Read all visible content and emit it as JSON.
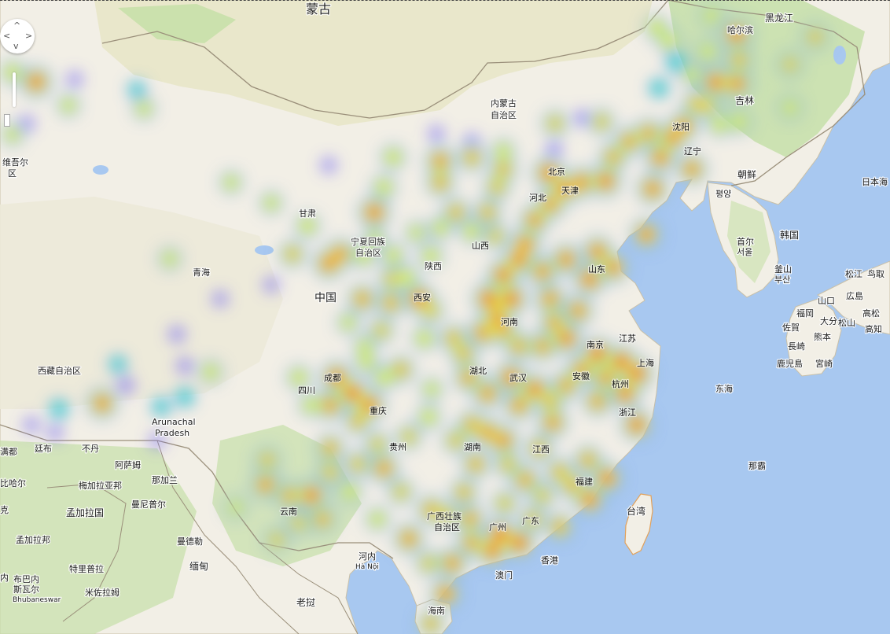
{
  "map": {
    "title": "",
    "colors": {
      "water": "#a8c8f0",
      "land": "#f2efe6",
      "steppe": "#e6e6c8",
      "greenery": "#c6dfa8",
      "border": "#9a8f7a",
      "heat_low": "#7a6df2",
      "heat_mid": "#3ee0c8",
      "heat_yellow": "#f4f23a",
      "heat_high": "#f03a2a"
    },
    "icons": [
      "pan-control-icon",
      "zoom-slider-icon"
    ]
  },
  "labels": {
    "mongolia": "蒙古",
    "heilongjiang": "黑龙江",
    "harbin": "哈尔滨",
    "jilin": "吉林",
    "inner_mongolia_1": "内蒙古",
    "inner_mongolia_2": "自治区",
    "shenyang": "沈阳",
    "liaoning": "辽宁",
    "north_korea": "朝鲜",
    "pyongyang": "평양",
    "south_korea": "韩国",
    "seoul_zh": "首尔",
    "seoul_ko": "서울",
    "busan_zh": "釜山",
    "busan_ko": "부산",
    "japan_sea": "日本海",
    "matsue": "松江",
    "tottori": "鸟取",
    "yamaguchi": "山口",
    "hiroshima": "広島",
    "fukuoka": "福岡",
    "oita": "大分",
    "matsuyama": "松山",
    "takamatsu": "高松",
    "saga": "佐賀",
    "kumamoto": "熊本",
    "kochi": "高知",
    "nagasaki": "長崎",
    "kagoshima": "鹿児島",
    "miyazaki": "宮崎",
    "east_china_sea": "东海",
    "naha": "那霸",
    "taiwan": "台湾",
    "beijing": "北京",
    "tianjin": "天津",
    "hebei": "河北",
    "shanxi": "山西",
    "shandong": "山东",
    "henan": "河南",
    "jiangsu": "江苏",
    "nanjing": "南京",
    "shanghai": "上海",
    "anhui": "安徽",
    "hangzhou": "杭州",
    "zhejiang": "浙江",
    "hubei": "湖北",
    "wuhan": "武汉",
    "hunan": "湖南",
    "jiangxi": "江西",
    "fujian": "福建",
    "guangdong": "广东",
    "guangzhou": "广州",
    "hongkong": "香港",
    "macau": "澳门",
    "guangxi_1": "广西壮族",
    "guangxi_2": "自治区",
    "hainan": "海南",
    "guizhou": "贵州",
    "chongqing": "重庆",
    "sichuan": "四川",
    "chengdu": "成都",
    "yunnan": "云南",
    "shaanxi": "陕西",
    "xian": "西安",
    "ningxia_1": "宁夏回族",
    "ningxia_2": "自治区",
    "gansu": "甘肃",
    "qinghai": "青海",
    "china": "中国",
    "tibet": "西藏自治区",
    "xinjiang_1": "维吾尔",
    "xinjiang_2": "区",
    "arunachal_1": "Arunachal",
    "arunachal_2": "Pradesh",
    "thimphu": "廷布",
    "bhutan": "不丹",
    "assam": "阿萨姆",
    "nagaland": "那加兰",
    "meghalaya": "梅加拉亚邦",
    "manipur": "曼尼普尔",
    "bangladesh": "孟加拉国",
    "west_bengal": "孟加拉邦",
    "tripura": "特里普拉",
    "mizoram": "米佐拉姆",
    "bihar": "比哈尔",
    "kathmandu": "满都",
    "mandalay": "曼德勒",
    "myanmar": "缅甸",
    "hanoi_zh": "河内",
    "hanoi_vi": "Hà Nội",
    "laos": "老挝",
    "bhubaneswar_zh_1": "布巴内",
    "bhubaneswar_zh_2": "斯瓦尔",
    "bhubaneswar_en": "Bhubaneswar",
    "krk": "克",
    "ne": "内"
  },
  "heat_points": [
    [
      418,
      210,
      0.1
    ],
    [
      46,
      104,
      0.95
    ],
    [
      16,
      92,
      0.55
    ],
    [
      87,
      134,
      0.45
    ],
    [
      16,
      171,
      0.45
    ],
    [
      95,
      101,
      0.1
    ],
    [
      174,
      114,
      0.25
    ],
    [
      183,
      138,
      0.45
    ],
    [
      34,
      157,
      0.1
    ],
    [
      294,
      232,
      0.45
    ],
    [
      345,
      258,
      0.45
    ],
    [
      391,
      287,
      0.55
    ],
    [
      372,
      323,
      0.65
    ],
    [
      418,
      335,
      0.9
    ],
    [
      433,
      323,
      0.85
    ],
    [
      216,
      329,
      0.45
    ],
    [
      345,
      362,
      0.1
    ],
    [
      461,
      380,
      0.8
    ],
    [
      497,
      385,
      0.75
    ],
    [
      517,
      353,
      0.55
    ],
    [
      533,
      380,
      0.95
    ],
    [
      548,
      325,
      0.55
    ],
    [
      548,
      395,
      0.6
    ],
    [
      540,
      430,
      0.55
    ],
    [
      577,
      430,
      0.7
    ],
    [
      485,
      420,
      0.6
    ],
    [
      464,
      440,
      0.45
    ],
    [
      443,
      410,
      0.45
    ],
    [
      466,
      460,
      0.5
    ],
    [
      488,
      480,
      0.55
    ],
    [
      510,
      470,
      0.7
    ],
    [
      428,
      480,
      0.95
    ],
    [
      448,
      500,
      1.0
    ],
    [
      470,
      515,
      0.95
    ],
    [
      420,
      515,
      0.85
    ],
    [
      455,
      535,
      0.7
    ],
    [
      380,
      480,
      0.55
    ],
    [
      395,
      515,
      0.5
    ],
    [
      549,
      495,
      0.45
    ],
    [
      545,
      530,
      0.55
    ],
    [
      520,
      555,
      0.6
    ],
    [
      480,
      565,
      0.6
    ],
    [
      488,
      595,
      0.85
    ],
    [
      455,
      590,
      0.65
    ],
    [
      420,
      570,
      0.75
    ],
    [
      420,
      600,
      0.65
    ],
    [
      340,
      585,
      0.65
    ],
    [
      338,
      616,
      0.85
    ],
    [
      368,
      630,
      0.75
    ],
    [
      396,
      630,
      0.95
    ],
    [
      410,
      660,
      0.75
    ],
    [
      380,
      665,
      0.6
    ],
    [
      300,
      645,
      0.45
    ],
    [
      352,
      686,
      0.6
    ],
    [
      445,
      625,
      0.55
    ],
    [
      480,
      660,
      0.5
    ],
    [
      510,
      625,
      0.6
    ],
    [
      548,
      648,
      0.75
    ],
    [
      520,
      685,
      0.85
    ],
    [
      545,
      716,
      0.6
    ],
    [
      575,
      716,
      0.85
    ],
    [
      567,
      755,
      0.9
    ],
    [
      548,
      793,
      0.7
    ],
    [
      568,
      655,
      0.65
    ],
    [
      598,
      660,
      0.8
    ],
    [
      636,
      680,
      1.0
    ],
    [
      660,
      690,
      1.0
    ],
    [
      626,
      700,
      0.95
    ],
    [
      600,
      690,
      0.8
    ],
    [
      678,
      660,
      0.65
    ],
    [
      712,
      670,
      0.75
    ],
    [
      590,
      626,
      0.7
    ],
    [
      642,
      640,
      0.6
    ],
    [
      668,
      610,
      0.8
    ],
    [
      690,
      630,
      0.6
    ],
    [
      712,
      600,
      0.7
    ],
    [
      748,
      585,
      0.75
    ],
    [
      772,
      608,
      0.95
    ],
    [
      750,
      635,
      0.95
    ],
    [
      728,
      617,
      0.75
    ],
    [
      620,
      550,
      0.85
    ],
    [
      640,
      560,
      0.9
    ],
    [
      600,
      540,
      0.75
    ],
    [
      580,
      560,
      0.65
    ],
    [
      605,
      590,
      0.75
    ],
    [
      646,
      590,
      0.65
    ],
    [
      686,
      570,
      0.7
    ],
    [
      703,
      537,
      0.85
    ],
    [
      660,
      515,
      0.85
    ],
    [
      680,
      495,
      0.95
    ],
    [
      650,
      480,
      0.95
    ],
    [
      620,
      500,
      0.85
    ],
    [
      596,
      480,
      0.8
    ],
    [
      590,
      450,
      0.7
    ],
    [
      614,
      423,
      0.85
    ],
    [
      632,
      403,
      0.9
    ],
    [
      622,
      380,
      1.0
    ],
    [
      650,
      380,
      1.0
    ],
    [
      640,
      350,
      0.95
    ],
    [
      660,
      330,
      0.95
    ],
    [
      668,
      310,
      0.9
    ],
    [
      680,
      280,
      0.85
    ],
    [
      700,
      260,
      0.85
    ],
    [
      718,
      240,
      0.95
    ],
    [
      698,
      220,
      0.95
    ],
    [
      740,
      232,
      0.9
    ],
    [
      770,
      230,
      0.95
    ],
    [
      780,
      200,
      0.75
    ],
    [
      800,
      180,
      0.8
    ],
    [
      825,
      170,
      0.8
    ],
    [
      840,
      200,
      0.9
    ],
    [
      855,
      175,
      0.9
    ],
    [
      870,
      160,
      0.85
    ],
    [
      830,
      240,
      0.9
    ],
    [
      880,
      215,
      0.85
    ],
    [
      822,
      298,
      0.9
    ],
    [
      690,
      345,
      0.85
    ],
    [
      700,
      380,
      0.85
    ],
    [
      720,
      330,
      0.9
    ],
    [
      760,
      320,
      0.9
    ],
    [
      750,
      355,
      0.95
    ],
    [
      780,
      340,
      0.9
    ],
    [
      735,
      395,
      0.85
    ],
    [
      705,
      410,
      0.8
    ],
    [
      690,
      440,
      0.8
    ],
    [
      720,
      430,
      0.95
    ],
    [
      760,
      450,
      1.0
    ],
    [
      790,
      460,
      1.0
    ],
    [
      810,
      475,
      1.0
    ],
    [
      795,
      500,
      0.95
    ],
    [
      810,
      540,
      0.95
    ],
    [
      770,
      480,
      0.85
    ],
    [
      760,
      510,
      0.8
    ],
    [
      740,
      470,
      0.85
    ],
    [
      720,
      490,
      0.8
    ],
    [
      700,
      510,
      0.7
    ],
    [
      660,
      440,
      0.75
    ],
    [
      640,
      420,
      0.8
    ],
    [
      560,
      205,
      0.85
    ],
    [
      560,
      232,
      0.75
    ],
    [
      600,
      200,
      0.7
    ],
    [
      640,
      215,
      0.7
    ],
    [
      632,
      238,
      0.65
    ],
    [
      620,
      270,
      0.7
    ],
    [
      580,
      270,
      0.7
    ],
    [
      560,
      290,
      0.5
    ],
    [
      530,
      296,
      0.45
    ],
    [
      600,
      294,
      0.55
    ],
    [
      630,
      300,
      0.6
    ],
    [
      476,
      270,
      0.95
    ],
    [
      488,
      238,
      0.55
    ],
    [
      500,
      200,
      0.55
    ],
    [
      477,
      303,
      0.45
    ],
    [
      463,
      325,
      0.55
    ],
    [
      500,
      325,
      0.55
    ],
    [
      498,
      355,
      0.6
    ],
    [
      706,
      157,
      0.6
    ],
    [
      765,
      155,
      0.6
    ],
    [
      740,
      150,
      0.1
    ],
    [
      705,
      190,
      0.1
    ],
    [
      640,
      192,
      0.5
    ],
    [
      600,
      180,
      0.1
    ],
    [
      555,
      170,
      0.1
    ],
    [
      910,
      105,
      0.95
    ],
    [
      937,
      106,
      0.9
    ],
    [
      937,
      44,
      0.95
    ],
    [
      940,
      76,
      0.7
    ],
    [
      900,
      66,
      0.5
    ],
    [
      905,
      20,
      0.5
    ],
    [
      900,
      135,
      0.6
    ],
    [
      885,
      132,
      0.65
    ],
    [
      835,
      35,
      0.55
    ],
    [
      851,
      52,
      0.55
    ],
    [
      860,
      79,
      0.4
    ],
    [
      880,
      95,
      0.45
    ],
    [
      838,
      112,
      0.35
    ],
    [
      915,
      158,
      0.55
    ],
    [
      940,
      155,
      0.55
    ],
    [
      1005,
      82,
      0.6
    ],
    [
      1037,
      47,
      0.65
    ],
    [
      1005,
      137,
      0.5
    ],
    [
      130,
      513,
      0.9
    ],
    [
      75,
      520,
      0.35
    ],
    [
      150,
      463,
      0.25
    ],
    [
      160,
      490,
      0.2
    ],
    [
      205,
      517,
      0.3
    ],
    [
      235,
      505,
      0.35
    ],
    [
      268,
      473,
      0.5
    ],
    [
      235,
      465,
      0.15
    ],
    [
      225,
      425,
      0.15
    ],
    [
      280,
      380,
      0.1
    ],
    [
      200,
      560,
      0.1
    ],
    [
      70,
      550,
      0.1
    ],
    [
      40,
      540,
      0.1
    ]
  ]
}
